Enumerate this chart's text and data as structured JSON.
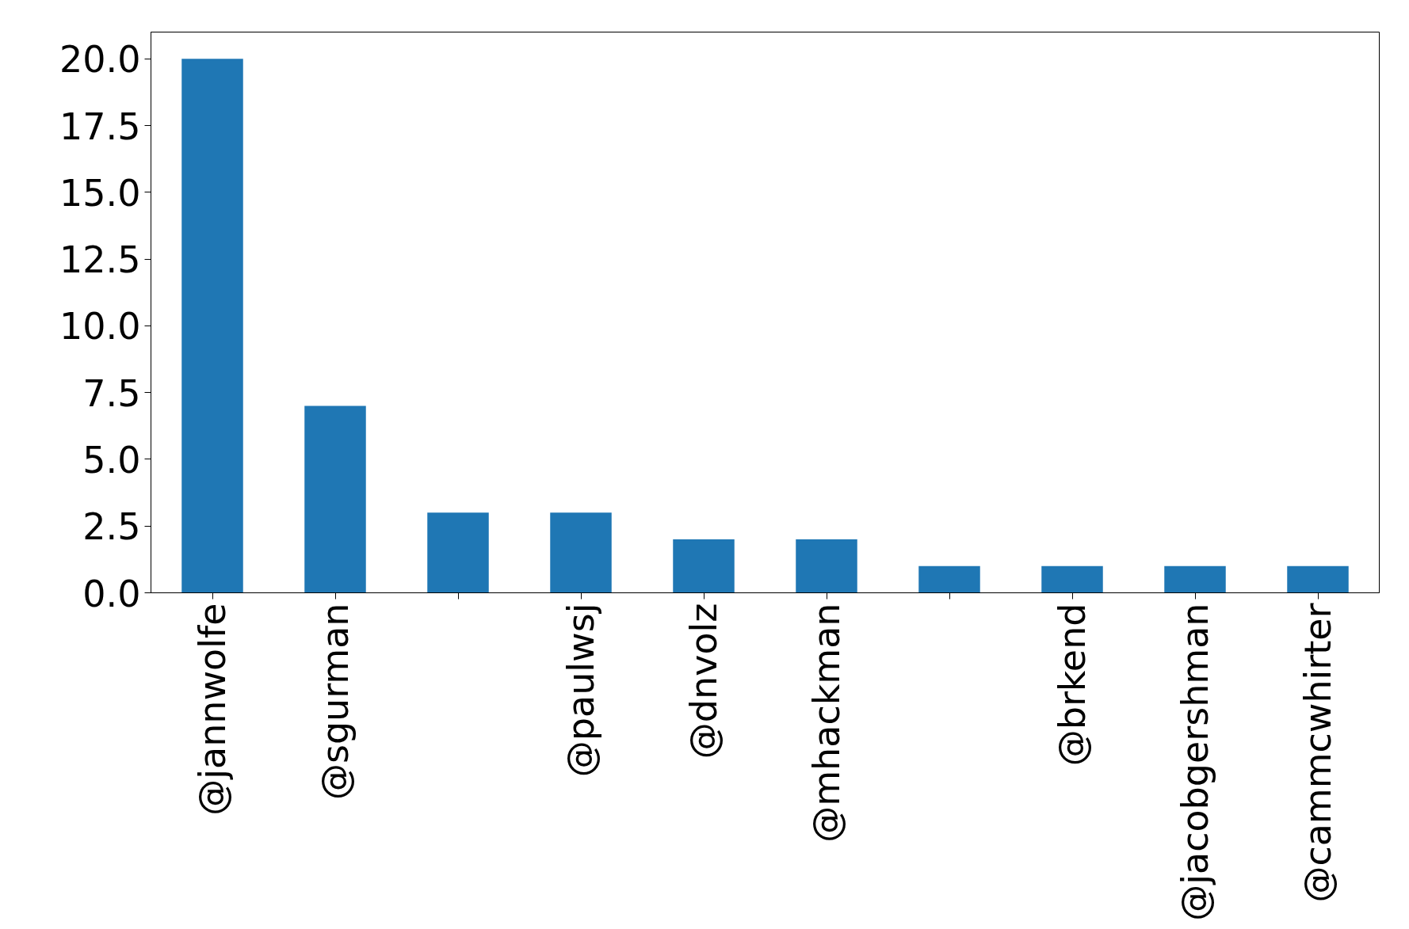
{
  "chart_data": {
    "type": "bar",
    "categories": [
      "@jannwolfe",
      "@sgurman",
      null,
      "@paulwsj",
      "@dnvolz",
      "@mhackman",
      null,
      "@brkend",
      "@jacobgershman",
      "@cammcwhirter"
    ],
    "values": [
      20,
      7,
      3,
      3,
      2,
      2,
      1,
      1,
      1,
      1
    ],
    "color": "#1f77b4",
    "ylim": [
      0,
      21
    ],
    "yticks": [
      {
        "value": 0,
        "label": "0.0"
      },
      {
        "value": 2.5,
        "label": "2.5"
      },
      {
        "value": 5,
        "label": "5.0"
      },
      {
        "value": 7.5,
        "label": "7.5"
      },
      {
        "value": 10,
        "label": "10.0"
      },
      {
        "value": 12.5,
        "label": "12.5"
      },
      {
        "value": 15,
        "label": "15.0"
      },
      {
        "value": 17.5,
        "label": "17.5"
      },
      {
        "value": 20,
        "label": "20.0"
      }
    ],
    "grid": false
  }
}
